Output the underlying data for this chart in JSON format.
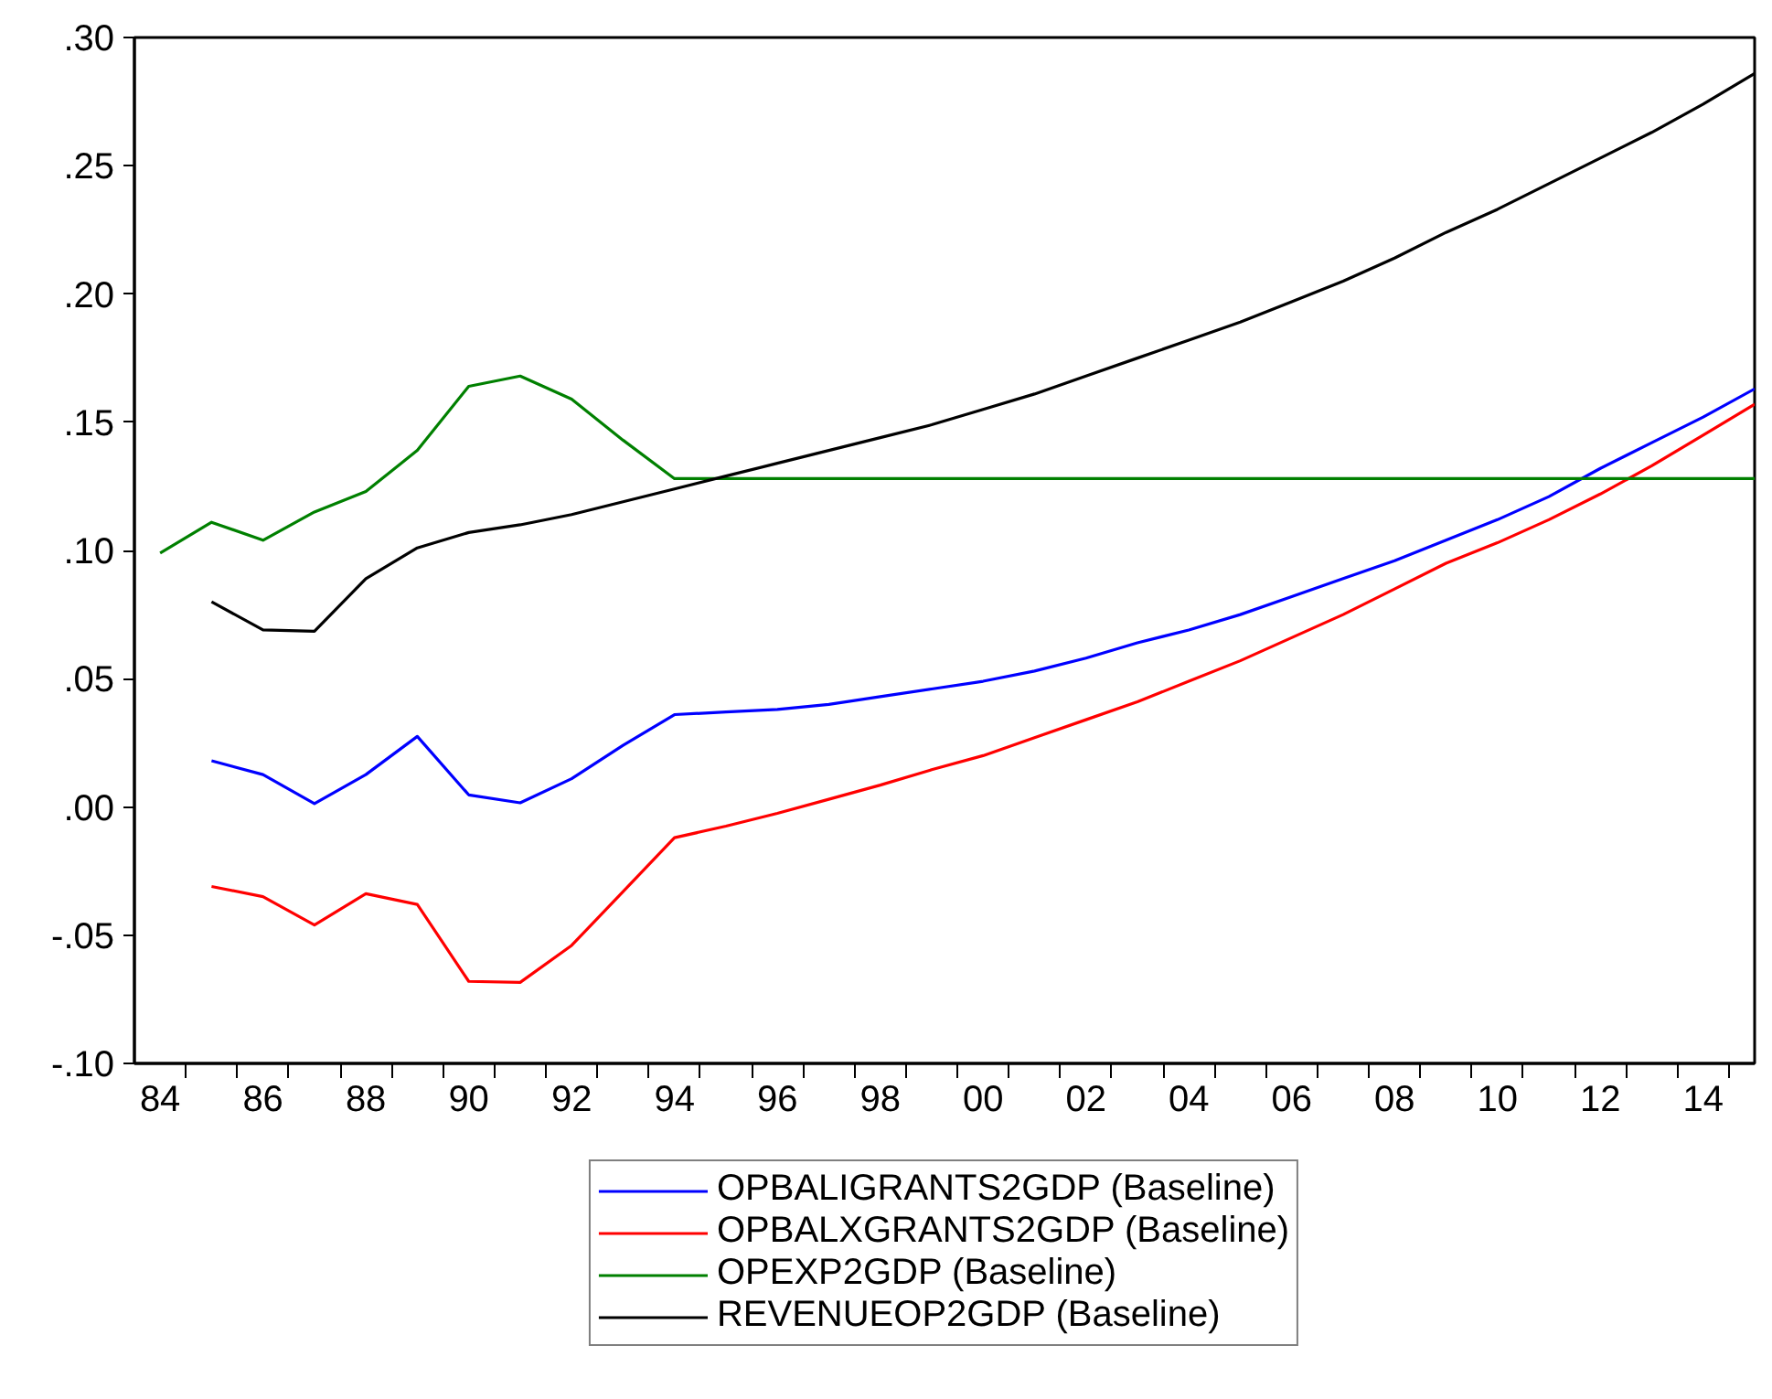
{
  "chart_data": {
    "type": "line",
    "xlim": [
      1983.5,
      2015
    ],
    "xticks": [
      {
        "value": 1984,
        "label": "84"
      },
      {
        "value": 1986,
        "label": "86"
      },
      {
        "value": 1988,
        "label": "88"
      },
      {
        "value": 1990,
        "label": "90"
      },
      {
        "value": 1992,
        "label": "92"
      },
      {
        "value": 1994,
        "label": "94"
      },
      {
        "value": 1996,
        "label": "96"
      },
      {
        "value": 1998,
        "label": "98"
      },
      {
        "value": 2000,
        "label": "00"
      },
      {
        "value": 2002,
        "label": "02"
      },
      {
        "value": 2004,
        "label": "04"
      },
      {
        "value": 2006,
        "label": "06"
      },
      {
        "value": 2008,
        "label": "08"
      },
      {
        "value": 2010,
        "label": "10"
      },
      {
        "value": 2012,
        "label": "12"
      },
      {
        "value": 2014,
        "label": "14"
      },
      {
        "value": 1984.5,
        "label": null
      },
      {
        "value": 1985.5,
        "label": null
      },
      {
        "value": 1986.5,
        "label": null
      },
      {
        "value": 1987.5,
        "label": null
      },
      {
        "value": 1988.5,
        "label": null
      },
      {
        "value": 1989.5,
        "label": null
      },
      {
        "value": 1990.5,
        "label": null
      },
      {
        "value": 1991.5,
        "label": null
      },
      {
        "value": 1992.5,
        "label": null
      },
      {
        "value": 1993.5,
        "label": null
      },
      {
        "value": 1994.5,
        "label": null
      },
      {
        "value": 1995.5,
        "label": null
      },
      {
        "value": 1996.5,
        "label": null
      },
      {
        "value": 1997.5,
        "label": null
      },
      {
        "value": 1998.5,
        "label": null
      },
      {
        "value": 1999.5,
        "label": null
      },
      {
        "value": 2000.5,
        "label": null
      },
      {
        "value": 2001.5,
        "label": null
      },
      {
        "value": 2002.5,
        "label": null
      },
      {
        "value": 2003.5,
        "label": null
      },
      {
        "value": 2004.5,
        "label": null
      },
      {
        "value": 2005.5,
        "label": null
      },
      {
        "value": 2006.5,
        "label": null
      },
      {
        "value": 2007.5,
        "label": null
      },
      {
        "value": 2008.5,
        "label": null
      },
      {
        "value": 2009.5,
        "label": null
      },
      {
        "value": 2010.5,
        "label": null
      },
      {
        "value": 2011.5,
        "label": null
      },
      {
        "value": 2012.5,
        "label": null
      },
      {
        "value": 2013.5,
        "label": null
      },
      {
        "value": 2014.5,
        "label": null
      }
    ],
    "ylim": [
      -0.1,
      0.3
    ],
    "yticks": [
      {
        "value": -0.1,
        "label": "-.10"
      },
      {
        "value": -0.05,
        "label": "-.05"
      },
      {
        "value": 0,
        "label": ".00"
      },
      {
        "value": 0.05,
        "label": ".05"
      },
      {
        "value": 0.1,
        "label": ".10"
      },
      {
        "value": 0.15,
        "label": ".15"
      },
      {
        "value": 0.2,
        "label": ".20"
      },
      {
        "value": 0.25,
        "label": ".25"
      },
      {
        "value": 0.3,
        "label": ".30"
      }
    ],
    "grid": false,
    "legend": "bottom",
    "line_style": "solid",
    "series": [
      {
        "name": "OPBALIGRANTS2GDP (Baseline)",
        "color": "#0000ff",
        "x": [
          1985,
          1986,
          1987,
          1988,
          1989,
          1990,
          1991,
          1992,
          1993,
          1994,
          1995,
          1996,
          1997,
          1998,
          1999,
          2000,
          2001,
          2002,
          2003,
          2004,
          2005,
          2006,
          2007,
          2008,
          2009,
          2010,
          2011,
          2012,
          2013,
          2014,
          2015
        ],
        "values": [
          0.018,
          0.0126,
          0.0013,
          0.0126,
          0.0275,
          0.0047,
          0.0016,
          0.011,
          0.024,
          0.036,
          0.037,
          0.038,
          0.04,
          0.043,
          0.046,
          0.049,
          0.053,
          0.058,
          0.064,
          0.069,
          0.075,
          0.082,
          0.089,
          0.096,
          0.104,
          0.112,
          0.121,
          0.132,
          0.142,
          0.152,
          0.163
        ]
      },
      {
        "name": "OPBALXGRANTS2GDP (Baseline)",
        "color": "#ff0000",
        "x": [
          1985,
          1986,
          1987,
          1988,
          1989,
          1990,
          1991,
          1992,
          1993,
          1994,
          1995,
          1996,
          1997,
          1998,
          1999,
          2000,
          2001,
          2002,
          2003,
          2004,
          2005,
          2006,
          2007,
          2008,
          2009,
          2010,
          2011,
          2012,
          2013,
          2014,
          2015
        ],
        "values": [
          -0.031,
          -0.035,
          -0.046,
          -0.0338,
          -0.038,
          -0.068,
          -0.0684,
          -0.054,
          -0.033,
          -0.012,
          -0.0075,
          -0.0025,
          0.003,
          0.0085,
          0.0145,
          0.02,
          0.027,
          0.034,
          0.041,
          0.049,
          0.057,
          0.066,
          0.075,
          0.085,
          0.095,
          0.103,
          0.112,
          0.122,
          0.133,
          0.145,
          0.157
        ]
      },
      {
        "name": "OPEXP2GDP (Baseline)",
        "color": "#008000",
        "x": [
          1984,
          1985,
          1986,
          1987,
          1988,
          1989,
          1990,
          1991,
          1992,
          1993,
          1994,
          1995,
          1996,
          1997,
          1998,
          1999,
          2000,
          2001,
          2002,
          2003,
          2004,
          2005,
          2006,
          2007,
          2008,
          2009,
          2010,
          2011,
          2012,
          2013,
          2014,
          2015
        ],
        "values": [
          0.099,
          0.111,
          0.104,
          0.115,
          0.123,
          0.139,
          0.164,
          0.168,
          0.159,
          0.143,
          0.128,
          0.128,
          0.128,
          0.128,
          0.128,
          0.128,
          0.128,
          0.128,
          0.128,
          0.128,
          0.128,
          0.128,
          0.128,
          0.128,
          0.128,
          0.128,
          0.128,
          0.128,
          0.128,
          0.128,
          0.128,
          0.128
        ]
      },
      {
        "name": "REVENUEOP2GDP (Baseline)",
        "color": "#000000",
        "x": [
          1985,
          1986,
          1987,
          1988,
          1989,
          1990,
          1991,
          1992,
          1993,
          1994,
          1995,
          1996,
          1997,
          1998,
          1999,
          2000,
          2001,
          2002,
          2003,
          2004,
          2005,
          2006,
          2007,
          2008,
          2009,
          2010,
          2011,
          2012,
          2013,
          2014,
          2015
        ],
        "values": [
          0.08,
          0.069,
          0.0685,
          0.089,
          0.101,
          0.107,
          0.11,
          0.114,
          0.119,
          0.124,
          0.129,
          0.134,
          0.139,
          0.144,
          0.149,
          0.155,
          0.161,
          0.168,
          0.175,
          0.182,
          0.189,
          0.197,
          0.205,
          0.214,
          0.224,
          0.233,
          0.243,
          0.253,
          0.263,
          0.274,
          0.286
        ]
      }
    ]
  }
}
